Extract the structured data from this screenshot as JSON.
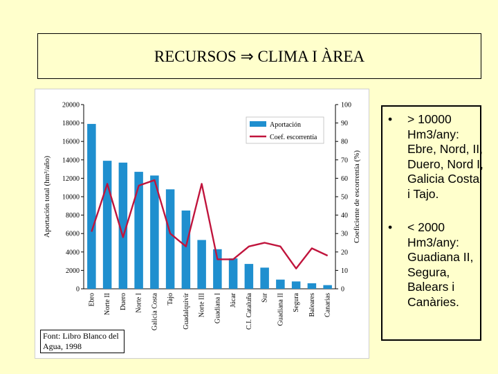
{
  "slide": {
    "title_part1": "RECURSOS",
    "title_arrow": "⇒",
    "title_part2": "CLIMA I ÀREA"
  },
  "source_note": "Font: Libro Blanco del Agua, 1998",
  "bullets": [
    {
      "marker": "•",
      "text": "> 10000 Hm3/any: Ebre, Nord, II, Duero, Nord I, Galicia Costa i Tajo."
    },
    {
      "marker": "•",
      "text": "< 2000 Hm3/any: Guadiana II, Segura, Balears i Canàries."
    }
  ],
  "chart_data": {
    "type": "bar",
    "categories": [
      "Ebro",
      "Norte II",
      "Duero",
      "Norte I",
      "Galicia Costa",
      "Tajo",
      "Guadalquivir",
      "Norte III",
      "Guadiana I",
      "Júcar",
      "C.I. Cataluña",
      "Sur",
      "Guadiana II",
      "Segura",
      "Baleares",
      "Canarias"
    ],
    "series": [
      {
        "name": "Aportación",
        "kind": "bar",
        "axis": "left",
        "color": "#1f8fcf",
        "values": [
          17900,
          13900,
          13700,
          12700,
          12300,
          10800,
          8500,
          5300,
          4300,
          3300,
          2700,
          2300,
          1000,
          800,
          600,
          400
        ]
      },
      {
        "name": "Coef. escorrentía",
        "kind": "line",
        "axis": "right",
        "color": "#c0143c",
        "values": [
          31,
          57,
          28,
          56,
          59,
          30,
          23,
          57,
          16,
          16,
          23,
          25,
          23,
          11,
          22,
          18
        ]
      }
    ],
    "ylabel_left": "Aportación total (hm³/año)",
    "ylabel_right": "Coeficiente de escorrentía (%)",
    "ylim_left": [
      0,
      20000
    ],
    "ylim_right": [
      0,
      100
    ],
    "yticks_left": [
      "0",
      "2000",
      "4000",
      "6000",
      "8000",
      "10000",
      "12000",
      "14000",
      "16000",
      "18000",
      "20000"
    ],
    "yticks_right": [
      "0",
      "10",
      "20",
      "30",
      "40",
      "50",
      "60",
      "70",
      "80",
      "90",
      "100"
    ],
    "grid": false,
    "legend_position": "top-right"
  }
}
